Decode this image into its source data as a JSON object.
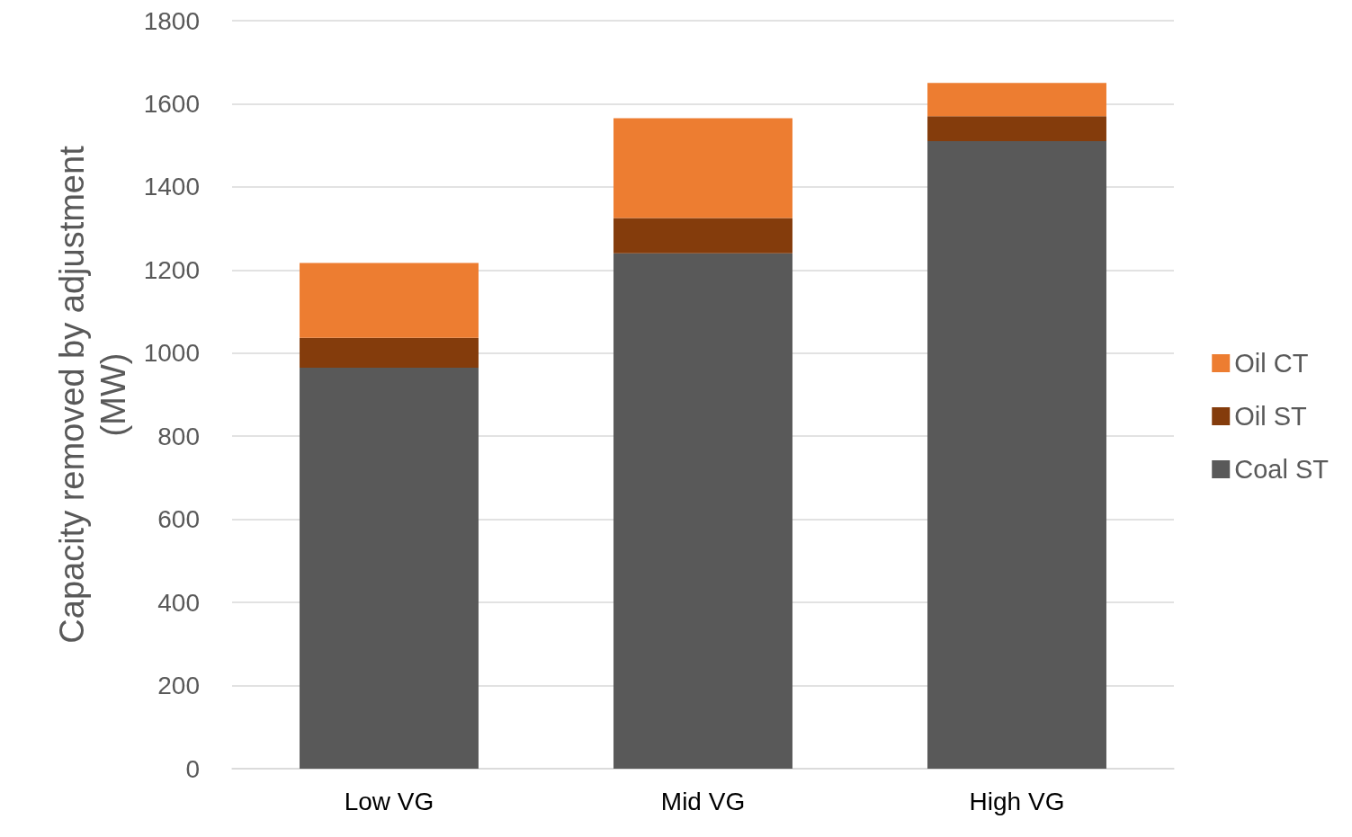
{
  "chart_data": {
    "type": "bar",
    "ylabel": "Capacity removed by adjustment\n(MW)",
    "categories": [
      "Low VG",
      "Mid VG",
      "High VG"
    ],
    "series": [
      {
        "name": "Coal ST",
        "color": "#595959",
        "values": [
          965,
          1240,
          1510
        ]
      },
      {
        "name": "Oil ST",
        "color": "#843c0c",
        "values": [
          72,
          85,
          60
        ]
      },
      {
        "name": "Oil CT",
        "color": "#ed7d31",
        "values": [
          180,
          240,
          80
        ]
      }
    ],
    "stacked": true,
    "ylim": [
      0,
      1800
    ],
    "yticks": [
      0,
      200,
      400,
      600,
      800,
      1000,
      1200,
      1400,
      1600,
      1800
    ],
    "grid": "y",
    "legend": "right"
  }
}
